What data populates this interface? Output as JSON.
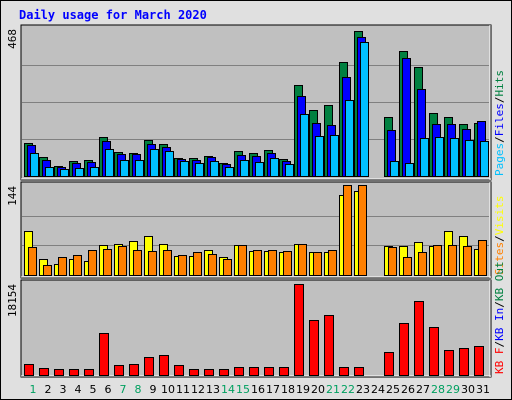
{
  "chart_data": {
    "type": "bar",
    "title": "Daily usage for March 2020",
    "categories": [
      "1",
      "2",
      "3",
      "4",
      "5",
      "6",
      "7",
      "8",
      "9",
      "10",
      "11",
      "12",
      "13",
      "14",
      "15",
      "16",
      "17",
      "18",
      "19",
      "20",
      "21",
      "22",
      "23",
      "24",
      "25",
      "26",
      "27",
      "28",
      "29",
      "30",
      "31"
    ],
    "weekend_days": [
      "1",
      "7",
      "8",
      "14",
      "15",
      "21",
      "22",
      "28",
      "29"
    ],
    "panels": [
      {
        "id": "hits_files_pages",
        "scale_max_label": "468",
        "ymax": 468,
        "legend": [
          "Pages",
          "/",
          "Files",
          "/",
          "Hits"
        ],
        "series": [
          {
            "name": "Hits",
            "color": "#008040",
            "values": [
              105,
              60,
              33,
              48,
              52,
              122,
              75,
              72,
              115,
              100,
              58,
              58,
              64,
              40,
              78,
              74,
              82,
              54,
              288,
              210,
              225,
              360,
              460,
              0,
              185,
              395,
              345,
              200,
              185,
              165,
              168
            ]
          },
          {
            "name": "Files",
            "color": "#0000ff",
            "values": [
              97,
              52,
              30,
              40,
              44,
              110,
              68,
              68,
              100,
              92,
              54,
              52,
              60,
              38,
              66,
              62,
              74,
              48,
              252,
              168,
              160,
              312,
              440,
              0,
              145,
              372,
              275,
              165,
              165,
              150,
              175
            ]
          },
          {
            "name": "Pages",
            "color": "#00c0ff",
            "values": [
              72,
              28,
              22,
              24,
              30,
              86,
              50,
              50,
              84,
              78,
              48,
              42,
              48,
              28,
              50,
              45,
              56,
              38,
              195,
              128,
              130,
              240,
              425,
              0,
              46,
              42,
              120,
              122,
              120,
              115,
              110
            ]
          }
        ]
      },
      {
        "id": "visits_sites",
        "scale_max_label": "144",
        "ymax": 144,
        "legend": [
          "Visits",
          "/",
          "Sites"
        ],
        "series": [
          {
            "name": "Visits",
            "color": "#ffff00",
            "values": [
              70,
              26,
              18,
              26,
              22,
              48,
              50,
              54,
              62,
              50,
              30,
              30,
              40,
              28,
              48,
              38,
              38,
              36,
              50,
              36,
              36,
              128,
              135,
              0,
              46,
              46,
              52,
              46,
              70,
              62,
              42
            ]
          },
          {
            "name": "Sites",
            "color": "#ff8000",
            "values": [
              45,
              16,
              28,
              32,
              40,
              42,
              46,
              40,
              38,
              40,
              32,
              36,
              34,
              26,
              48,
              40,
              40,
              38,
              50,
              36,
              40,
              144,
              144,
              0,
              44,
              28,
              36,
              48,
              48,
              46,
              56
            ]
          }
        ]
      },
      {
        "id": "kbytes",
        "scale_max_label": "18154",
        "ymax": 18154,
        "legend": [
          "KB F",
          "/",
          "KB In",
          "/",
          "KB Out"
        ],
        "series": [
          {
            "name": "KB F",
            "color": "#ff0000",
            "values": [
              2200,
              1300,
              1100,
              1200,
              1100,
              8400,
              1900,
              2100,
              3600,
              3900,
              2000,
              1100,
              1200,
              1100,
              1600,
              1600,
              1600,
              1500,
              18154,
              11000,
              12000,
              1600,
              1600,
              0,
              4500,
              10400,
              14800,
              9600,
              5000,
              5300,
              5800
            ]
          }
        ]
      }
    ]
  },
  "colors": {
    "title": "#0000ff",
    "weekend_label": "#00a060",
    "weekday_label": "#000000",
    "panel_bg": "#c0c0c0",
    "page_bg": "#e0e0e0"
  }
}
